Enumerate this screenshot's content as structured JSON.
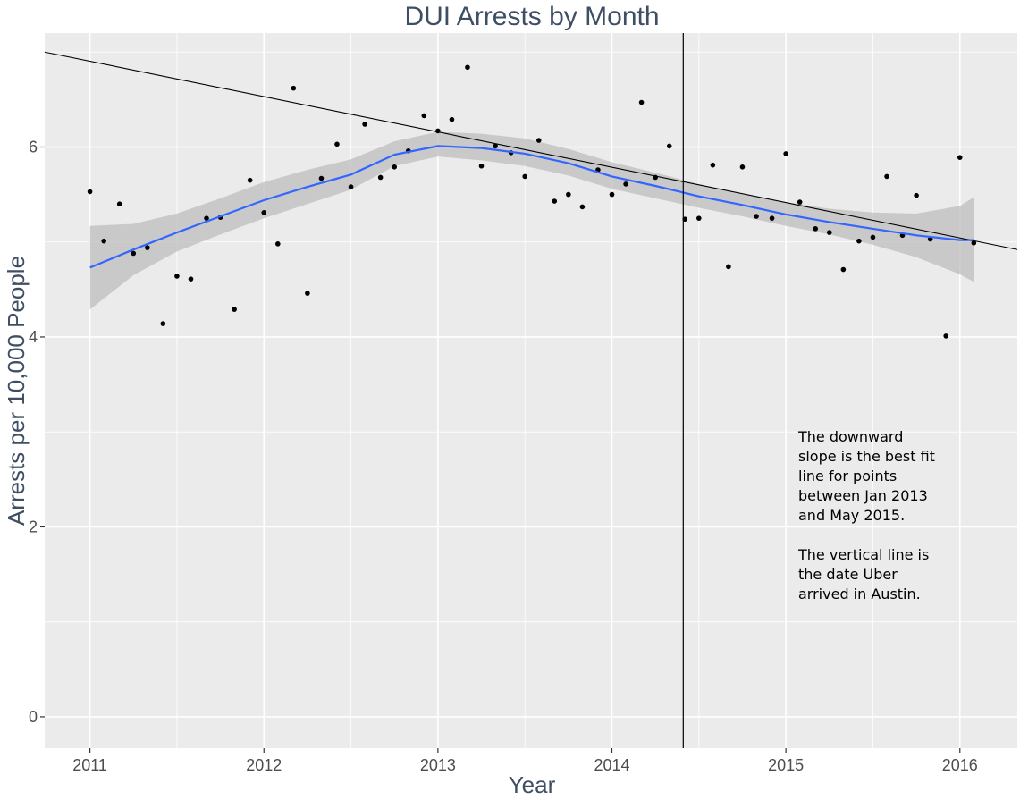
{
  "chart_data": {
    "type": "scatter",
    "title": "DUI Arrests by Month",
    "xlabel": "Year",
    "ylabel": "Arrests per 10,000 People",
    "xlim": [
      2010.74,
      2016.33
    ],
    "ylim": [
      -0.33,
      7.2
    ],
    "x_ticks": [
      2011,
      2012,
      2013,
      2014,
      2015,
      2016
    ],
    "x_tick_labels": [
      "2011",
      "2012",
      "2013",
      "2014",
      "2015",
      "2016"
    ],
    "y_ticks": [
      0,
      2,
      4,
      6
    ],
    "y_tick_labels": [
      "0",
      "2",
      "4",
      "6"
    ],
    "grid": true,
    "panel_background": "#ebebeb",
    "grid_color": "#ffffff",
    "point_color": "#000000",
    "smooth_color": "#3366ff",
    "band_color": "#bebebe",
    "points": [
      [
        2011.0,
        5.53
      ],
      [
        2011.08,
        5.01
      ],
      [
        2011.17,
        5.4
      ],
      [
        2011.25,
        4.88
      ],
      [
        2011.33,
        4.94
      ],
      [
        2011.42,
        4.14
      ],
      [
        2011.5,
        4.64
      ],
      [
        2011.58,
        4.61
      ],
      [
        2011.67,
        5.25
      ],
      [
        2011.75,
        5.26
      ],
      [
        2011.83,
        4.29
      ],
      [
        2011.92,
        5.65
      ],
      [
        2012.0,
        5.31
      ],
      [
        2012.08,
        4.98
      ],
      [
        2012.17,
        6.62
      ],
      [
        2012.25,
        4.46
      ],
      [
        2012.33,
        5.67
      ],
      [
        2012.42,
        6.03
      ],
      [
        2012.5,
        5.58
      ],
      [
        2012.58,
        6.24
      ],
      [
        2012.67,
        5.68
      ],
      [
        2012.75,
        5.79
      ],
      [
        2012.83,
        5.96
      ],
      [
        2012.92,
        6.33
      ],
      [
        2013.0,
        6.17
      ],
      [
        2013.08,
        6.29
      ],
      [
        2013.17,
        6.84
      ],
      [
        2013.25,
        5.8
      ],
      [
        2013.33,
        6.01
      ],
      [
        2013.42,
        5.94
      ],
      [
        2013.5,
        5.69
      ],
      [
        2013.58,
        6.07
      ],
      [
        2013.67,
        5.43
      ],
      [
        2013.75,
        5.5
      ],
      [
        2013.83,
        5.37
      ],
      [
        2013.92,
        5.76
      ],
      [
        2014.0,
        5.5
      ],
      [
        2014.08,
        5.61
      ],
      [
        2014.17,
        6.47
      ],
      [
        2014.25,
        5.68
      ],
      [
        2014.33,
        6.01
      ],
      [
        2014.42,
        5.24
      ],
      [
        2014.5,
        5.25
      ],
      [
        2014.58,
        5.81
      ],
      [
        2014.67,
        4.74
      ],
      [
        2014.75,
        5.79
      ],
      [
        2014.83,
        5.27
      ],
      [
        2014.92,
        5.25
      ],
      [
        2015.0,
        5.93
      ],
      [
        2015.08,
        5.42
      ],
      [
        2015.17,
        5.14
      ],
      [
        2015.25,
        5.1
      ],
      [
        2015.33,
        4.71
      ],
      [
        2015.42,
        5.01
      ],
      [
        2015.5,
        5.05
      ],
      [
        2015.58,
        5.69
      ],
      [
        2015.67,
        5.07
      ],
      [
        2015.75,
        5.49
      ],
      [
        2015.83,
        5.03
      ],
      [
        2015.92,
        4.01
      ],
      [
        2016.0,
        5.89
      ],
      [
        2016.08,
        4.99
      ]
    ],
    "smooth": {
      "x": [
        2011.0,
        2011.25,
        2011.5,
        2011.75,
        2012.0,
        2012.25,
        2012.5,
        2012.75,
        2013.0,
        2013.25,
        2013.5,
        2013.75,
        2014.0,
        2014.25,
        2014.5,
        2014.75,
        2015.0,
        2015.25,
        2015.5,
        2015.75,
        2016.0,
        2016.08
      ],
      "y": [
        4.73,
        4.92,
        5.1,
        5.27,
        5.44,
        5.58,
        5.71,
        5.92,
        6.01,
        5.99,
        5.93,
        5.83,
        5.69,
        5.59,
        5.48,
        5.39,
        5.29,
        5.21,
        5.14,
        5.07,
        5.02,
        5.02
      ],
      "lower": [
        4.29,
        4.65,
        4.9,
        5.08,
        5.25,
        5.4,
        5.55,
        5.8,
        5.9,
        5.86,
        5.8,
        5.7,
        5.56,
        5.46,
        5.36,
        5.27,
        5.17,
        5.08,
        4.97,
        4.84,
        4.66,
        4.58
      ],
      "upper": [
        5.17,
        5.19,
        5.3,
        5.46,
        5.63,
        5.76,
        5.87,
        6.06,
        6.16,
        6.14,
        6.09,
        5.98,
        5.84,
        5.73,
        5.61,
        5.51,
        5.42,
        5.35,
        5.31,
        5.3,
        5.38,
        5.47
      ]
    },
    "trend_line": {
      "x1": 2010.74,
      "y1": 7.0,
      "x2": 2016.33,
      "y2": 4.92
    },
    "vertical_line": {
      "x": 2014.41
    },
    "annotation": [
      "The downward",
      "slope is the best fit",
      "line for points",
      "between Jan 2013",
      "and May 2015.",
      "",
      "The vertical line is",
      "the date Uber",
      "arrived in Austin."
    ]
  }
}
